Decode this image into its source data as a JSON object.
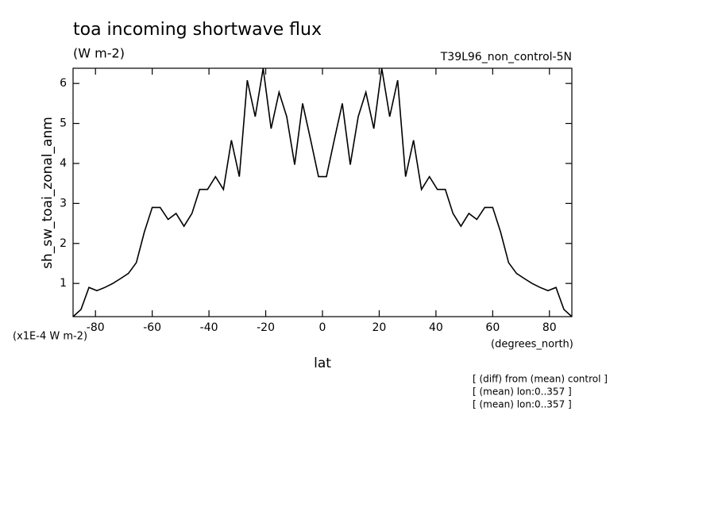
{
  "chart_data": {
    "type": "line",
    "title": "toa incoming shortwave flux",
    "units": "(W m-2)",
    "dataset": "T39L96_non_control-5N",
    "ylabel": "sh_sw_toai_zonal_anm",
    "yscale_label": "(x1E-4 W m-2)",
    "xunits": "(degrees_north)",
    "xlabel": "lat",
    "notes": [
      "[ (diff) from (mean) control ]",
      "[ (mean) lon:0..357 ]",
      "[ (mean) lon:0..357 ]"
    ],
    "x": [
      -87.9,
      -85.1,
      -82.3,
      -79.5,
      -76.7,
      -73.9,
      -71.2,
      -68.4,
      -65.6,
      -62.8,
      -60.0,
      -57.2,
      -54.4,
      -51.6,
      -48.8,
      -46.0,
      -43.3,
      -40.5,
      -37.7,
      -34.9,
      -32.1,
      -29.3,
      -26.5,
      -23.7,
      -20.9,
      -18.1,
      -15.3,
      -12.6,
      -9.8,
      -7.0,
      -4.2,
      -1.4,
      1.4,
      4.2,
      7.0,
      9.8,
      12.6,
      15.3,
      18.1,
      20.9,
      23.7,
      26.5,
      29.3,
      32.1,
      34.9,
      37.7,
      40.5,
      43.3,
      46.0,
      48.8,
      51.6,
      54.4,
      57.2,
      60.0,
      62.8,
      65.6,
      68.4,
      71.2,
      73.9,
      76.7,
      79.5,
      82.3,
      85.1,
      87.9
    ],
    "series": [
      {
        "name": "sh_sw_toai_zonal_anm",
        "color": "#000000",
        "values": [
          0.17,
          0.35,
          0.9,
          0.82,
          0.9,
          1.0,
          1.12,
          1.25,
          1.52,
          2.28,
          2.9,
          2.9,
          2.6,
          2.75,
          2.43,
          2.75,
          3.35,
          3.35,
          3.67,
          3.35,
          4.58,
          3.67,
          6.08,
          5.17,
          6.38,
          4.87,
          5.78,
          5.17,
          3.97,
          5.5,
          4.6,
          3.67,
          3.67,
          4.6,
          5.5,
          3.97,
          5.17,
          5.78,
          4.87,
          6.38,
          5.17,
          6.08,
          3.67,
          4.58,
          3.35,
          3.67,
          3.35,
          3.35,
          2.75,
          2.43,
          2.75,
          2.6,
          2.9,
          2.9,
          2.28,
          1.52,
          1.25,
          1.12,
          1.0,
          0.9,
          0.82,
          0.9,
          0.35,
          0.17
        ]
      }
    ],
    "xlim": [
      -87.9,
      87.9
    ],
    "ylim": [
      0.17,
      6.38
    ],
    "xticks": [
      -80,
      -60,
      -40,
      -20,
      0,
      20,
      40,
      60,
      80
    ],
    "yticks": [
      1,
      2,
      3,
      4,
      5,
      6
    ]
  }
}
